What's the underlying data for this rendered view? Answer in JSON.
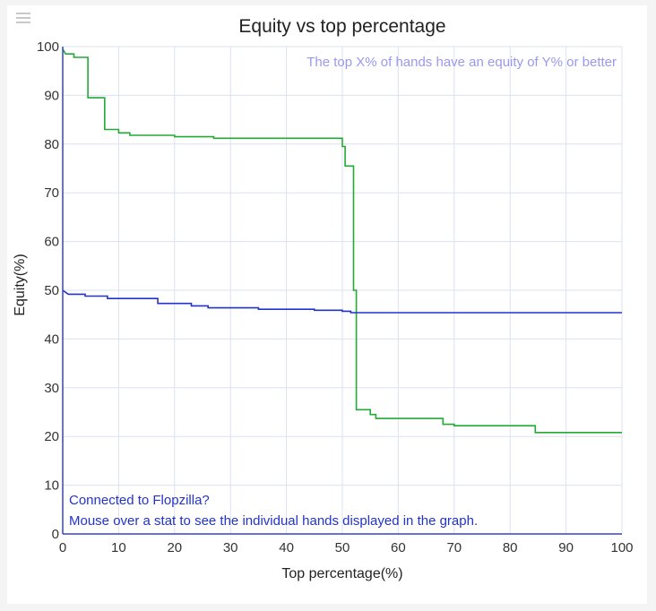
{
  "chart_data": {
    "type": "line",
    "title": "Equity vs top percentage",
    "subtitle": "The top X% of hands have an equity of Y% or better",
    "xlabel": "Top percentage(%)",
    "ylabel": "Equity(%)",
    "xlim": [
      0,
      100
    ],
    "ylim": [
      0,
      100
    ],
    "xticks": [
      0,
      10,
      20,
      30,
      40,
      50,
      60,
      70,
      80,
      90,
      100
    ],
    "yticks": [
      0,
      10,
      20,
      30,
      40,
      50,
      60,
      70,
      80,
      90,
      100
    ],
    "grid": true,
    "series": [
      {
        "color": "#22aa33",
        "points": [
          [
            0,
            99.5
          ],
          [
            0.5,
            98.5
          ],
          [
            2,
            98.5
          ],
          [
            2,
            97.8
          ],
          [
            4.5,
            97.8
          ],
          [
            4.5,
            89.5
          ],
          [
            7.5,
            89.5
          ],
          [
            7.5,
            83
          ],
          [
            10,
            83
          ],
          [
            10,
            82.3
          ],
          [
            12,
            82.3
          ],
          [
            12,
            81.8
          ],
          [
            20,
            81.8
          ],
          [
            20,
            81.5
          ],
          [
            27,
            81.5
          ],
          [
            27,
            81.2
          ],
          [
            50,
            81.2
          ],
          [
            50,
            79.5
          ],
          [
            50.5,
            79.5
          ],
          [
            50.5,
            75.5
          ],
          [
            52,
            75.5
          ],
          [
            52,
            50
          ],
          [
            52.5,
            50
          ],
          [
            52.5,
            25.5
          ],
          [
            55,
            25.5
          ],
          [
            55,
            24.5
          ],
          [
            56,
            24.5
          ],
          [
            56,
            23.7
          ],
          [
            68,
            23.7
          ],
          [
            68,
            22.5
          ],
          [
            70,
            22.5
          ],
          [
            70,
            22.2
          ],
          [
            84.5,
            22.2
          ],
          [
            84.5,
            20.8
          ],
          [
            100,
            20.8
          ]
        ]
      },
      {
        "color": "#2233cc",
        "points": [
          [
            0,
            50
          ],
          [
            1,
            49.2
          ],
          [
            4,
            49.2
          ],
          [
            4,
            48.8
          ],
          [
            8,
            48.8
          ],
          [
            8,
            48.3
          ],
          [
            17,
            48.3
          ],
          [
            17,
            47.3
          ],
          [
            23,
            47.3
          ],
          [
            23,
            46.8
          ],
          [
            26,
            46.8
          ],
          [
            26,
            46.4
          ],
          [
            35,
            46.4
          ],
          [
            35,
            46.1
          ],
          [
            45,
            46.1
          ],
          [
            45,
            45.9
          ],
          [
            50,
            45.9
          ],
          [
            50,
            45.7
          ],
          [
            51.5,
            45.7
          ],
          [
            51.5,
            45.4
          ],
          [
            100,
            45.4
          ]
        ]
      }
    ],
    "annotations": [
      "Connected to Flopzilla?",
      "Mouse over a stat to see the individual hands displayed in the graph."
    ]
  },
  "icons": {
    "menu": "hamburger-menu-icon"
  }
}
